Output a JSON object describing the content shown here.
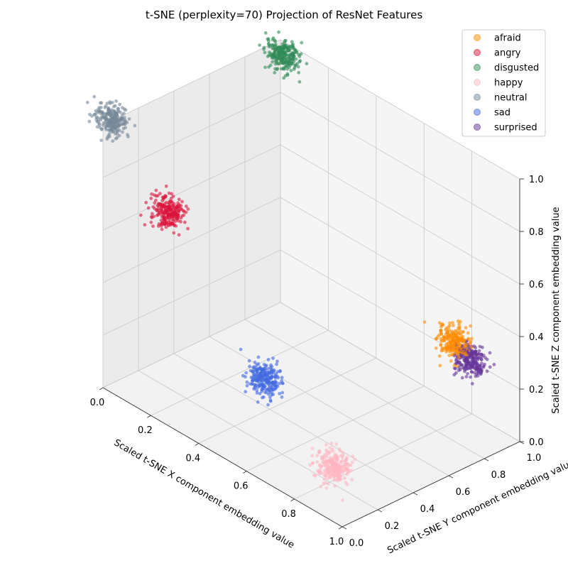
{
  "chart_data": {
    "type": "scatter",
    "title": "t-SNE (perplexity=70) Projection of ResNet Features",
    "xlabel": "Scaled t-SNE X component embedding value",
    "ylabel": "Scaled t-SNE Y component embedding value",
    "zlabel": "Scaled t-SNE Z component embedding value",
    "xlim": [
      0,
      1
    ],
    "ylim": [
      0,
      1
    ],
    "zlim": [
      0,
      1
    ],
    "xticks": [
      "0.0",
      "0.2",
      "0.4",
      "0.6",
      "0.8",
      "1.0"
    ],
    "yticks": [
      "0.0",
      "0.2",
      "0.4",
      "0.6",
      "0.8",
      "1.0"
    ],
    "zticks": [
      "0.0",
      "0.2",
      "0.4",
      "0.6",
      "0.8",
      "1.0"
    ],
    "grid": true,
    "legend_position": "top-right",
    "series": [
      {
        "name": "afraid",
        "color": "#ff8c00",
        "center": [
          0.95,
          0.7,
          0.45
        ],
        "spread": [
          0.05,
          0.05,
          0.05
        ],
        "count": 240
      },
      {
        "name": "angry",
        "color": "#dc143c",
        "center": [
          0.05,
          0.3,
          0.6
        ],
        "spread": [
          0.05,
          0.05,
          0.05
        ],
        "count": 240
      },
      {
        "name": "disgusted",
        "color": "#2e8b57",
        "center": [
          0.05,
          0.95,
          0.98
        ],
        "spread": [
          0.05,
          0.05,
          0.05
        ],
        "count": 240
      },
      {
        "name": "happy",
        "color": "#ffb6c1",
        "center": [
          0.85,
          0.15,
          0.1
        ],
        "spread": [
          0.05,
          0.05,
          0.05
        ],
        "count": 240
      },
      {
        "name": "neutral",
        "color": "#778899",
        "center": [
          0.0,
          0.05,
          1.0
        ],
        "spread": [
          0.05,
          0.05,
          0.05
        ],
        "count": 240
      },
      {
        "name": "sad",
        "color": "#4169e1",
        "center": [
          0.6,
          0.1,
          0.32
        ],
        "spread": [
          0.05,
          0.05,
          0.05
        ],
        "count": 240
      },
      {
        "name": "surprised",
        "color": "#663399",
        "center": [
          1.0,
          0.72,
          0.4
        ],
        "spread": [
          0.05,
          0.05,
          0.05
        ],
        "count": 240
      }
    ]
  }
}
